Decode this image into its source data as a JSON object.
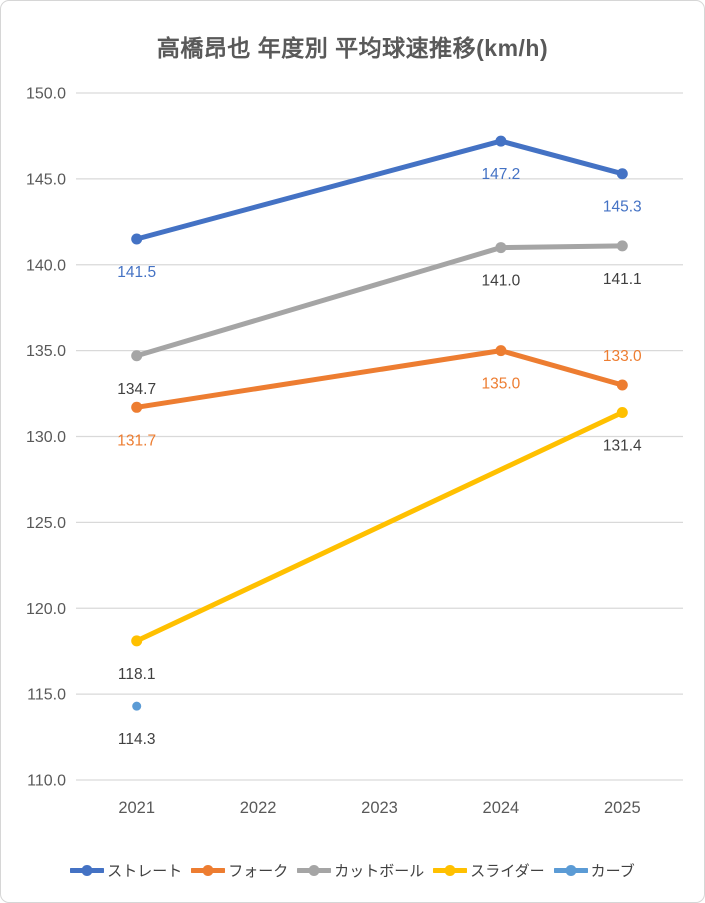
{
  "title": "高橋昂也 年度別 平均球速推移(km/h)",
  "chart_data": {
    "type": "line",
    "categories": [
      "2021",
      "2022",
      "2023",
      "2024",
      "2025"
    ],
    "series": [
      {
        "name": "ストレート",
        "color": "#4472C4",
        "label_color": "#4472C4",
        "values": [
          141.5,
          null,
          null,
          147.2,
          145.3
        ],
        "labels": [
          "141.5",
          null,
          null,
          "147.2",
          "145.3"
        ],
        "label_side": [
          "below",
          null,
          null,
          "below",
          "below"
        ]
      },
      {
        "name": "フォーク",
        "color": "#ED7D31",
        "label_color": "#ED7D31",
        "values": [
          131.7,
          null,
          null,
          135.0,
          133.0
        ],
        "labels": [
          "131.7",
          null,
          null,
          "135.0",
          "133.0"
        ],
        "label_side": [
          "below",
          null,
          null,
          "below",
          "above"
        ]
      },
      {
        "name": "カットボール",
        "color": "#A5A5A5",
        "label_color": "#404040",
        "values": [
          134.7,
          null,
          null,
          141.0,
          141.1
        ],
        "labels": [
          "134.7",
          null,
          null,
          "141.0",
          "141.1"
        ],
        "label_side": [
          "below",
          null,
          null,
          "below",
          "below"
        ]
      },
      {
        "name": "スライダー",
        "color": "#FFC000",
        "label_color": "#404040",
        "values": [
          118.1,
          null,
          null,
          null,
          131.4
        ],
        "labels": [
          "118.1",
          null,
          null,
          null,
          "131.4"
        ],
        "label_side": [
          "below",
          null,
          null,
          null,
          "below"
        ]
      },
      {
        "name": "カーブ",
        "color": "#5B9BD5",
        "label_color": "#404040",
        "values": [
          114.3,
          null,
          null,
          null,
          null
        ],
        "labels": [
          "114.3",
          null,
          null,
          null,
          null
        ],
        "label_side": [
          "below",
          null,
          null,
          null,
          null
        ]
      }
    ],
    "ylim": [
      110,
      150
    ],
    "yticks": [
      "150.0",
      "145.0",
      "140.0",
      "135.0",
      "130.0",
      "125.0",
      "120.0",
      "115.0",
      "110.0"
    ],
    "xlabel": "",
    "ylabel": "",
    "grid": true,
    "legend_position": "bottom"
  },
  "colors": {
    "background": "#FFFFFF",
    "border": "#D6D6D6",
    "gridline": "#D9D9D9",
    "axis_text": "#595959",
    "title_text": "#595959",
    "legend_text": "#404040"
  }
}
